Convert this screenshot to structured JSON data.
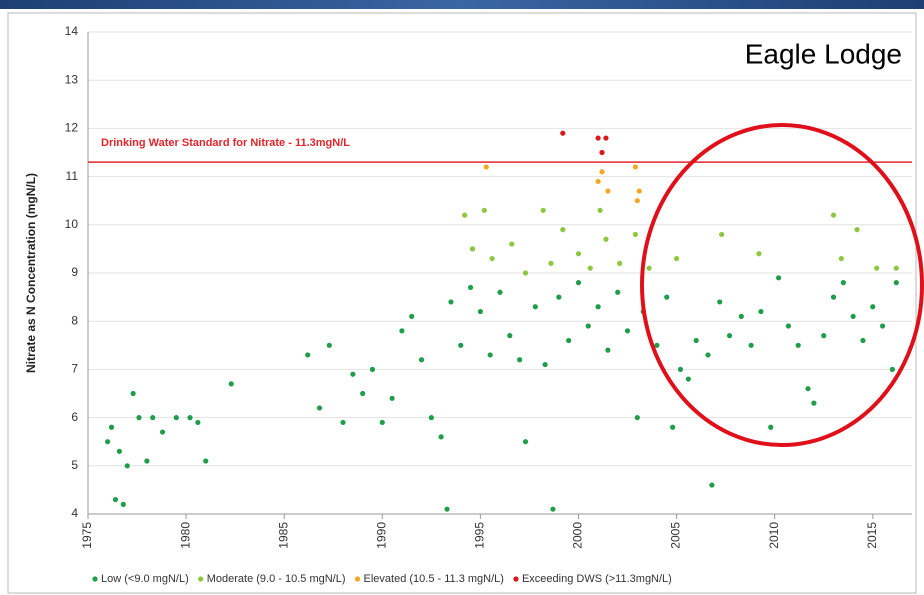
{
  "chart_data": {
    "type": "scatter",
    "title": "Eagle Lodge",
    "y_label": "Nitrate as N Concentration (mgN/L)",
    "annotation": "Drinking Water Standard for Nitrate - 11.3mgN/L",
    "standard": 11.3,
    "standard_color": "#e0262b",
    "xlim": [
      1975,
      2017
    ],
    "xticks": [
      1975,
      1980,
      1985,
      1990,
      1995,
      2000,
      2005,
      2010,
      2015
    ],
    "ylim": [
      4,
      14
    ],
    "yticks": [
      4,
      5,
      6,
      7,
      8,
      9,
      10,
      11,
      12,
      13,
      14
    ],
    "grid": true,
    "legend": "bottom",
    "series": [
      {
        "name": "Low (<9.0 mgN/L)",
        "color": "#1f9d4a",
        "x": [
          1976.0,
          1976.2,
          1976.4,
          1976.6,
          1976.8,
          1977.0,
          1977.3,
          1977.6,
          1978.0,
          1978.3,
          1978.8,
          1979.5,
          1980.2,
          1980.6,
          1981.0,
          1982.3,
          1986.2,
          1986.8,
          1987.3,
          1988.0,
          1988.5,
          1989.0,
          1989.5,
          1990.0,
          1990.5,
          1991.0,
          1991.5,
          1992.0,
          1992.5,
          1993.0,
          1993.3,
          1993.5,
          1994.0,
          1994.5,
          1995.0,
          1995.5,
          1996.0,
          1996.5,
          1997.0,
          1997.3,
          1997.8,
          1998.3,
          1998.7,
          1999.0,
          1999.5,
          2000.0,
          2000.5,
          2001.0,
          2001.5,
          2002.0,
          2002.5,
          2003.0,
          2003.3,
          2004.0,
          2004.5,
          2004.8,
          2005.2,
          2005.6,
          2006.0,
          2006.6,
          2006.8,
          2007.2,
          2007.7,
          2008.3,
          2008.8,
          2009.3,
          2009.8,
          2010.2,
          2010.7,
          2011.2,
          2011.7,
          2012.0,
          2012.5,
          2013.0,
          2013.5,
          2014.0,
          2014.5,
          2015.0,
          2015.5,
          2016.0,
          2016.2
        ],
        "values": [
          5.5,
          5.8,
          4.3,
          5.3,
          4.2,
          5.0,
          6.5,
          6.0,
          5.1,
          6.0,
          5.7,
          6.0,
          6.0,
          5.9,
          5.1,
          6.7,
          7.3,
          6.2,
          7.5,
          5.9,
          6.9,
          6.5,
          7.0,
          5.9,
          6.4,
          7.8,
          8.1,
          7.2,
          6.0,
          5.6,
          4.1,
          8.4,
          7.5,
          8.7,
          8.2,
          7.3,
          8.6,
          7.7,
          7.2,
          5.5,
          8.3,
          7.1,
          4.1,
          8.5,
          7.6,
          8.8,
          7.9,
          8.3,
          7.4,
          8.6,
          7.8,
          6.0,
          8.2,
          7.5,
          8.5,
          5.8,
          7.0,
          6.8,
          7.6,
          7.3,
          4.6,
          8.4,
          7.7,
          8.1,
          7.5,
          8.2,
          5.8,
          8.9,
          7.9,
          7.5,
          6.6,
          6.3,
          7.7,
          8.5,
          8.8,
          8.1,
          7.6,
          8.3,
          7.9,
          7.0,
          8.8
        ]
      },
      {
        "name": "Moderate (9.0 - 10.5 mgN/L)",
        "color": "#8dc63f",
        "x": [
          1994.2,
          1994.6,
          1995.2,
          1995.6,
          1996.6,
          1997.3,
          1998.2,
          1998.6,
          1999.2,
          2000.0,
          2000.6,
          2001.1,
          2001.4,
          2002.1,
          2002.9,
          2003.6,
          2005.0,
          2007.3,
          2009.2,
          2013.0,
          2013.4,
          2014.2,
          2015.2,
          2016.2
        ],
        "values": [
          10.2,
          9.5,
          10.3,
          9.3,
          9.6,
          9.0,
          10.3,
          9.2,
          9.9,
          9.4,
          9.1,
          10.3,
          9.7,
          9.2,
          9.8,
          9.1,
          9.3,
          9.8,
          9.4,
          10.2,
          9.3,
          9.9,
          9.1,
          9.1
        ]
      },
      {
        "name": "Elevated (10.5 - 11.3 mgN/L)",
        "color": "#f5a623",
        "x": [
          1995.3,
          2001.0,
          2001.2,
          2001.5,
          2002.9,
          2003.0,
          2003.1
        ],
        "values": [
          11.2,
          10.9,
          11.1,
          10.7,
          11.2,
          10.5,
          10.7
        ]
      },
      {
        "name": "Exceeding DWS (>11.3mgN/L)",
        "color": "#d7191c",
        "x": [
          1999.2,
          2001.0,
          2001.2,
          2001.4
        ],
        "values": [
          11.9,
          11.8,
          11.5,
          11.8
        ]
      }
    ]
  }
}
